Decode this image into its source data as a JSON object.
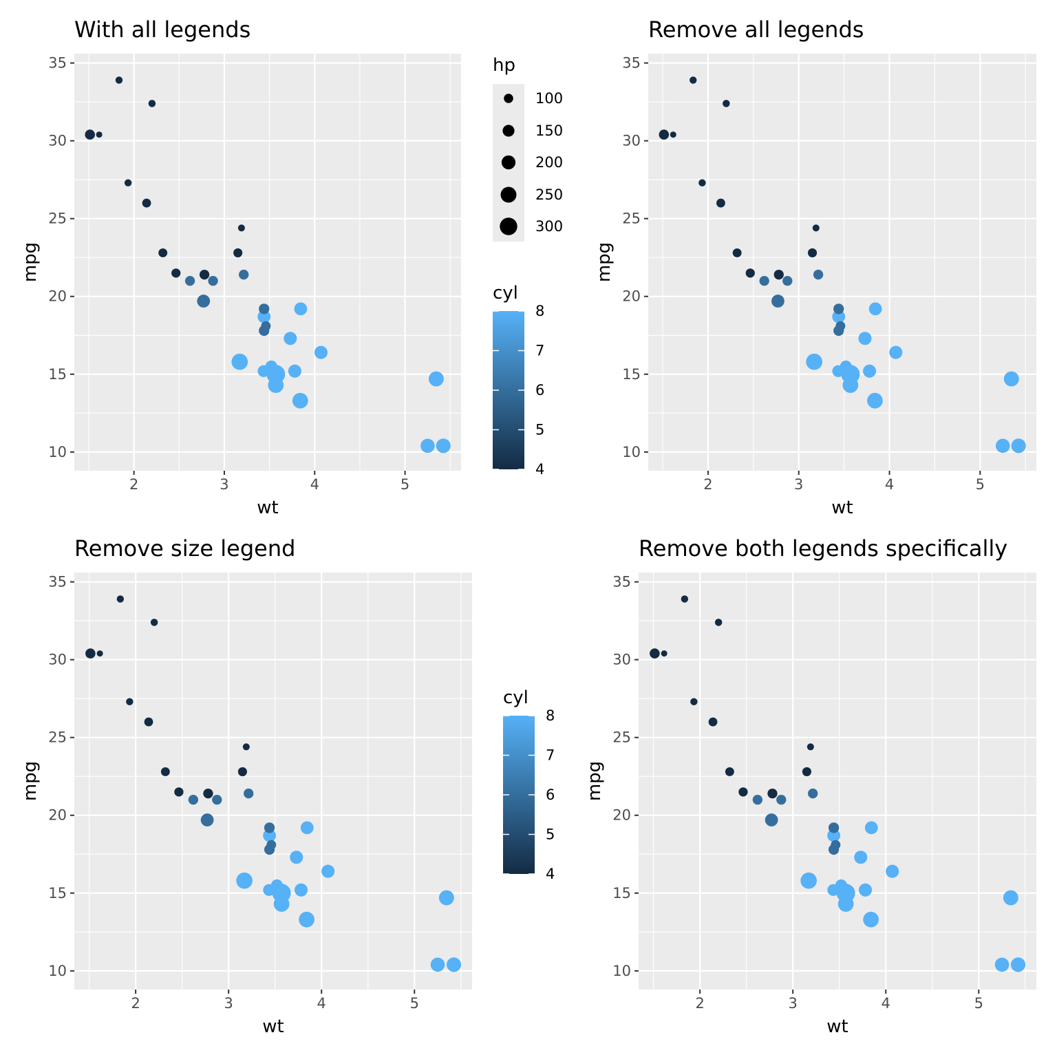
{
  "chart_data": [
    {
      "type": "scatter",
      "title": "With all legends",
      "xlabel": "wt",
      "ylabel": "mpg",
      "xlim": [
        1.34,
        5.62
      ],
      "ylim": [
        8.8,
        35.6
      ],
      "x_ticks": [
        "2",
        "3",
        "4",
        "5"
      ],
      "y_ticks": [
        "10",
        "15",
        "20",
        "25",
        "30",
        "35"
      ],
      "legends": {
        "size": {
          "title": "hp",
          "labels": [
            "100",
            "150",
            "200",
            "250",
            "300"
          ]
        },
        "color": {
          "title": "cyl",
          "labels": [
            "4",
            "5",
            "6",
            "7",
            "8"
          ]
        }
      }
    },
    {
      "type": "scatter",
      "title": "Remove all legends",
      "xlabel": "wt",
      "ylabel": "mpg",
      "xlim": [
        1.34,
        5.62
      ],
      "ylim": [
        8.8,
        35.6
      ],
      "x_ticks": [
        "2",
        "3",
        "4",
        "5"
      ],
      "y_ticks": [
        "10",
        "15",
        "20",
        "25",
        "30",
        "35"
      ],
      "legends": {}
    },
    {
      "type": "scatter",
      "title": "Remove size legend",
      "xlabel": "wt",
      "ylabel": "mpg",
      "xlim": [
        1.34,
        5.62
      ],
      "ylim": [
        8.8,
        35.6
      ],
      "x_ticks": [
        "2",
        "3",
        "4",
        "5"
      ],
      "y_ticks": [
        "10",
        "15",
        "20",
        "25",
        "30",
        "35"
      ],
      "legends": {
        "color": {
          "title": "cyl",
          "labels": [
            "4",
            "5",
            "6",
            "7",
            "8"
          ]
        }
      }
    },
    {
      "type": "scatter",
      "title": "Remove both legends specifically",
      "xlabel": "wt",
      "ylabel": "mpg",
      "xlim": [
        1.34,
        5.62
      ],
      "ylim": [
        8.8,
        35.6
      ],
      "x_ticks": [
        "2",
        "3",
        "4",
        "5"
      ],
      "y_ticks": [
        "10",
        "15",
        "20",
        "25",
        "30",
        "35"
      ],
      "legends": {}
    }
  ],
  "points": {
    "fields": [
      "wt",
      "mpg",
      "cyl",
      "hp"
    ],
    "rows": [
      [
        2.62,
        21.0,
        6,
        110
      ],
      [
        2.875,
        21.0,
        6,
        110
      ],
      [
        2.32,
        22.8,
        4,
        93
      ],
      [
        3.215,
        21.4,
        6,
        110
      ],
      [
        3.44,
        18.7,
        8,
        175
      ],
      [
        3.46,
        18.1,
        6,
        105
      ],
      [
        3.57,
        14.3,
        8,
        245
      ],
      [
        3.19,
        24.4,
        4,
        62
      ],
      [
        3.15,
        22.8,
        4,
        95
      ],
      [
        3.44,
        19.2,
        6,
        123
      ],
      [
        3.44,
        17.8,
        6,
        123
      ],
      [
        4.07,
        16.4,
        8,
        180
      ],
      [
        3.73,
        17.3,
        8,
        180
      ],
      [
        3.78,
        15.2,
        8,
        180
      ],
      [
        5.25,
        10.4,
        8,
        205
      ],
      [
        5.424,
        10.4,
        8,
        215
      ],
      [
        5.345,
        14.7,
        8,
        230
      ],
      [
        2.2,
        32.4,
        4,
        66
      ],
      [
        1.615,
        30.4,
        4,
        52
      ],
      [
        1.835,
        33.9,
        4,
        65
      ],
      [
        2.465,
        21.5,
        4,
        97
      ],
      [
        3.52,
        15.5,
        8,
        150
      ],
      [
        3.435,
        15.2,
        8,
        150
      ],
      [
        3.84,
        13.3,
        8,
        245
      ],
      [
        3.845,
        19.2,
        8,
        175
      ],
      [
        1.935,
        27.3,
        4,
        66
      ],
      [
        2.14,
        26.0,
        4,
        91
      ],
      [
        1.513,
        30.4,
        4,
        113
      ],
      [
        3.17,
        15.8,
        8,
        264
      ],
      [
        2.77,
        19.7,
        6,
        175
      ],
      [
        3.57,
        15.0,
        8,
        335
      ],
      [
        2.78,
        21.4,
        4,
        109
      ]
    ]
  },
  "colors": {
    "panel": "#ebebeb",
    "grid": "#ffffff",
    "low": "#132b43",
    "high": "#56b1f7",
    "tick_text": "#4d4d4d"
  }
}
